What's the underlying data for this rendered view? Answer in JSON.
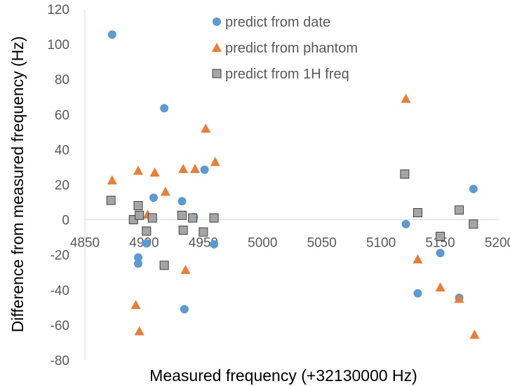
{
  "chart_data": {
    "type": "scatter",
    "title": "",
    "xlabel": "Measured frequency (+32130000 Hz)",
    "ylabel": "Difference from measured frequency (Hz)",
    "xlim": [
      4850,
      5200
    ],
    "ylim": [
      -80,
      120
    ],
    "xticks": [
      4850,
      4900,
      4950,
      5000,
      5050,
      5100,
      5150,
      5200
    ],
    "yticks": [
      -80,
      -60,
      -40,
      -20,
      0,
      20,
      40,
      60,
      80,
      100,
      120
    ],
    "grid": false,
    "legend_position": "top-center",
    "series": [
      {
        "name": "predict from date",
        "marker": "circle",
        "color": "#5B9BD5",
        "points": [
          [
            4873,
            105.5
          ],
          [
            4917,
            63.5
          ],
          [
            4908,
            12.5
          ],
          [
            4895,
            -21.5
          ],
          [
            4895,
            -25
          ],
          [
            4902,
            -13.5
          ],
          [
            4932,
            10.5
          ],
          [
            4934,
            -51
          ],
          [
            4942,
            1.5
          ],
          [
            4951,
            28.5
          ],
          [
            4959,
            -14
          ],
          [
            5121,
            -2.5
          ],
          [
            5131,
            -42
          ],
          [
            5150,
            -19
          ],
          [
            5166,
            -44.5
          ],
          [
            5178,
            17.5
          ]
        ]
      },
      {
        "name": "predict from phantom",
        "marker": "triangle",
        "color": "#ED7D31",
        "points": [
          [
            4873,
            22.5
          ],
          [
            4895,
            28
          ],
          [
            4893,
            -48.5
          ],
          [
            4896,
            -63.5
          ],
          [
            4903,
            3
          ],
          [
            4909,
            27
          ],
          [
            4918,
            16
          ],
          [
            4933,
            29
          ],
          [
            4935,
            -28.5
          ],
          [
            4943,
            29
          ],
          [
            4952,
            52
          ],
          [
            4960,
            33
          ],
          [
            5121,
            69
          ],
          [
            5131,
            -22.5
          ],
          [
            5150,
            -38.5
          ],
          [
            5166,
            -45
          ],
          [
            5179,
            -65.5
          ]
        ]
      },
      {
        "name": "predict from 1H freq",
        "marker": "square",
        "color": "#A5A5A5",
        "points": [
          [
            4872,
            11
          ],
          [
            4891,
            0
          ],
          [
            4895,
            8
          ],
          [
            4896,
            2.5
          ],
          [
            4902,
            -6.5
          ],
          [
            4907,
            1
          ],
          [
            4917,
            -26
          ],
          [
            4932,
            2.5
          ],
          [
            4933,
            -6
          ],
          [
            4941,
            1
          ],
          [
            4950,
            -7
          ],
          [
            4959,
            1
          ],
          [
            5120,
            26
          ],
          [
            5131,
            4
          ],
          [
            5150,
            -9.5
          ],
          [
            5166,
            5.5
          ],
          [
            5178,
            -2.5
          ]
        ]
      }
    ]
  }
}
